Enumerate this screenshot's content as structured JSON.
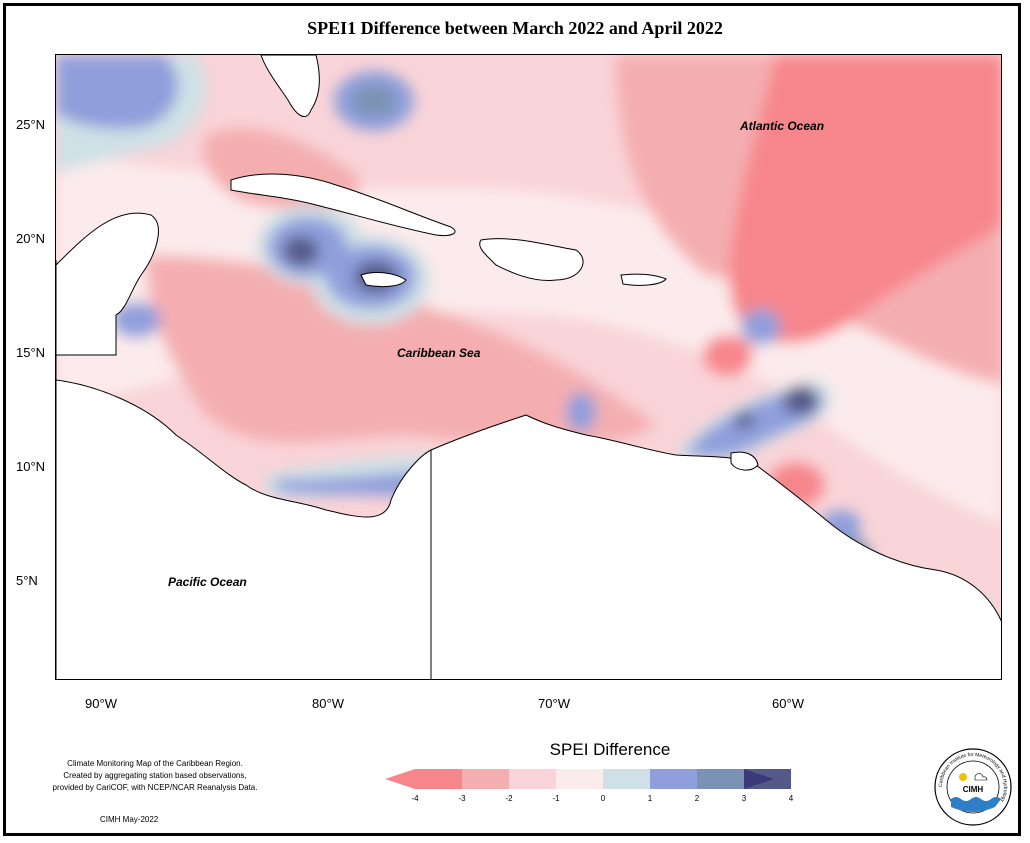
{
  "title": "SPEI1 Difference between March 2022 and April 2022",
  "latitude_labels": [
    "25°N",
    "20°N",
    "15°N",
    "10°N",
    "5°N"
  ],
  "longitude_labels": [
    "90°W",
    "80°W",
    "70°W",
    "60°W"
  ],
  "map_labels": {
    "atlantic": "Atlantic Ocean",
    "caribbean": "Caribbean Sea",
    "pacific": "Pacific Ocean"
  },
  "credit": {
    "line1": "Climate Monitoring Map of the Caribbean Region.",
    "line2": "Created by aggregating station based observations,",
    "line3": "provided by CariCOF, with NCEP/NCAR Reanalysis Data.",
    "date": "CIMH May-2022"
  },
  "legend": {
    "title": "SPEI Difference",
    "ticks": [
      "-4",
      "-3",
      "-2",
      "-1",
      "0",
      "1",
      "2",
      "3",
      "4"
    ],
    "colors": [
      "#f6868c",
      "#f4aeb0",
      "#f9d4d8",
      "#fcebec",
      "#cfe1e6",
      "#8f9fdc",
      "#7a93b4",
      "#545a88",
      "#3b3a78"
    ]
  },
  "logo": {
    "text": "CIMH",
    "ring_text": "Caribbean Institute for Meteorology and Hydrology"
  }
}
